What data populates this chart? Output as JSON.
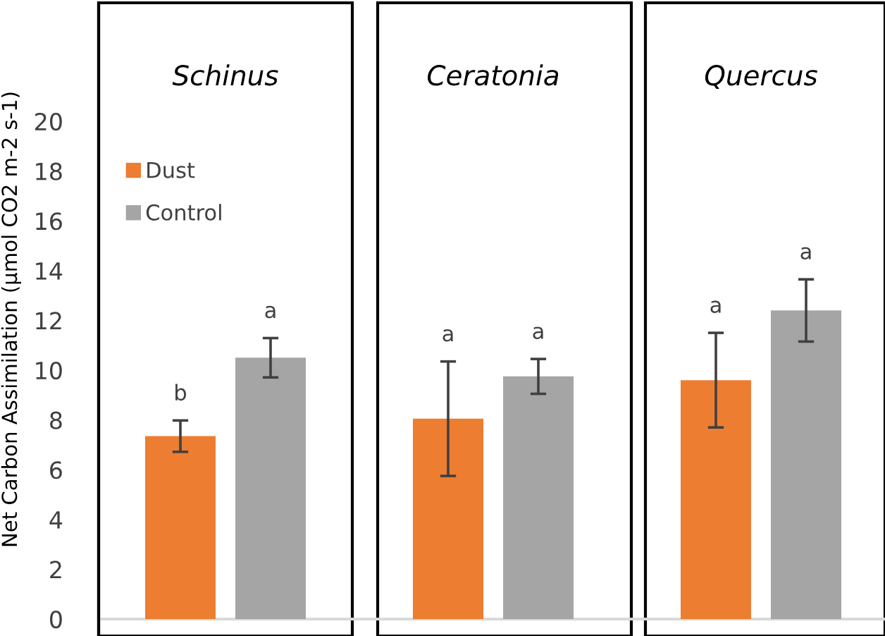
{
  "chart_data": {
    "type": "bar",
    "ylabel": "Net Carbon Assimilation (µmol CO2 m-2 s-1)",
    "categories": [
      "Schinus",
      "Ceratonia",
      "Quercus"
    ],
    "ylim": [
      -0.68,
      24.76
    ],
    "yticks": [
      0,
      2,
      4,
      6,
      8,
      10,
      12,
      14,
      16,
      18,
      20
    ],
    "legend": "top left",
    "series": [
      {
        "name": "Dust",
        "color": "#ed7d31",
        "values": [
          7.35,
          8.05,
          9.6
        ],
        "errors": [
          0.63,
          2.3,
          1.9
        ]
      },
      {
        "name": "Control",
        "color": "#a5a5a5",
        "values": [
          10.5,
          9.75,
          12.4
        ],
        "errors": [
          0.79,
          0.7,
          1.25
        ]
      }
    ],
    "annotations": [
      "b",
      "a",
      "a",
      "a",
      "a",
      "a"
    ],
    "ref_lines": [
      {
        "axis": "y",
        "value": 0,
        "color": "#d9d9d9"
      }
    ]
  }
}
